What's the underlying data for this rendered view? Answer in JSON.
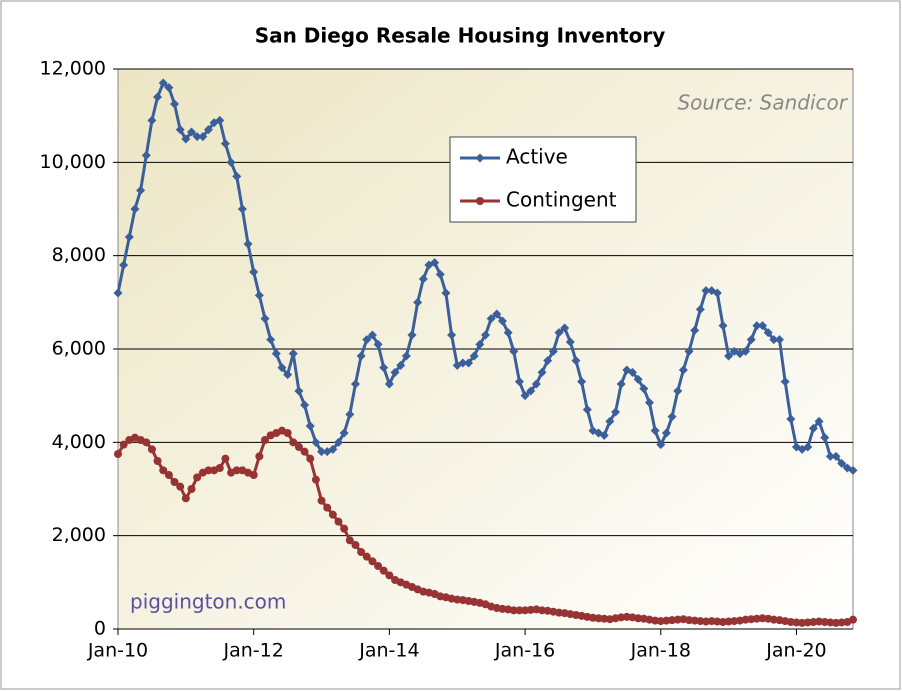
{
  "chart_data": {
    "type": "line",
    "title": "San Diego Resale Housing Inventory",
    "annotations": {
      "source": "Source: Sandicor",
      "watermark": "piggington.com"
    },
    "categories": [
      "Jan-10",
      null,
      null,
      null,
      null,
      null,
      null,
      null,
      null,
      null,
      null,
      null,
      null,
      null,
      null,
      null,
      null,
      null,
      null,
      null,
      null,
      null,
      null,
      null,
      "Jan-12",
      null,
      null,
      null,
      null,
      null,
      null,
      null,
      null,
      null,
      null,
      null,
      null,
      null,
      null,
      null,
      null,
      null,
      null,
      null,
      null,
      null,
      null,
      null,
      "Jan-14",
      null,
      null,
      null,
      null,
      null,
      null,
      null,
      null,
      null,
      null,
      null,
      null,
      null,
      null,
      null,
      null,
      null,
      null,
      null,
      null,
      null,
      null,
      null,
      "Jan-16",
      null,
      null,
      null,
      null,
      null,
      null,
      null,
      null,
      null,
      null,
      null,
      null,
      null,
      null,
      null,
      null,
      null,
      null,
      null,
      null,
      null,
      null,
      null,
      "Jan-18",
      null,
      null,
      null,
      null,
      null,
      null,
      null,
      null,
      null,
      null,
      null,
      null,
      null,
      null,
      null,
      null,
      null,
      null,
      null,
      null,
      null,
      null,
      null,
      "Jan-20",
      null,
      null,
      null,
      null,
      null,
      null,
      null,
      null,
      null,
      null
    ],
    "series": [
      {
        "name": "Active",
        "color": "#3b5f9b",
        "marker": "diamond",
        "values": [
          7200,
          7800,
          8400,
          9000,
          9400,
          10150,
          10900,
          11400,
          11700,
          11600,
          11250,
          10700,
          10500,
          10650,
          10550,
          10550,
          10700,
          10850,
          10900,
          10400,
          10000,
          9700,
          9000,
          8250,
          7650,
          7150,
          6650,
          6200,
          5900,
          5600,
          5450,
          5900,
          5100,
          4800,
          4350,
          4000,
          3800,
          3800,
          3850,
          4000,
          4200,
          4600,
          5250,
          5850,
          6200,
          6300,
          6100,
          5600,
          5250,
          5500,
          5650,
          5850,
          6300,
          7000,
          7500,
          7800,
          7850,
          7600,
          7200,
          6300,
          5650,
          5700,
          5700,
          5850,
          6100,
          6300,
          6650,
          6750,
          6600,
          6350,
          5950,
          5300,
          5000,
          5100,
          5250,
          5500,
          5750,
          5950,
          6350,
          6450,
          6150,
          5750,
          5300,
          4700,
          4250,
          4200,
          4150,
          4450,
          4650,
          5250,
          5550,
          5500,
          5350,
          5150,
          4850,
          4250,
          3950,
          4200,
          4550,
          5100,
          5550,
          5950,
          6400,
          6850,
          7250,
          7250,
          7200,
          6500,
          5850,
          5950,
          5900,
          5950,
          6200,
          6500,
          6500,
          6350,
          6200,
          6200,
          5300,
          4500,
          3900,
          3850,
          3900,
          4300,
          4450,
          4100,
          3700,
          3700,
          3550,
          3450,
          3400
        ]
      },
      {
        "name": "Contingent",
        "color": "#973333",
        "marker": "circle",
        "values": [
          3750,
          3950,
          4050,
          4100,
          4050,
          4000,
          3850,
          3600,
          3400,
          3300,
          3150,
          3050,
          2800,
          3000,
          3250,
          3350,
          3400,
          3400,
          3450,
          3650,
          3350,
          3400,
          3400,
          3350,
          3300,
          3700,
          4050,
          4150,
          4200,
          4250,
          4200,
          4000,
          3900,
          3800,
          3650,
          3200,
          2750,
          2600,
          2450,
          2300,
          2150,
          1900,
          1800,
          1650,
          1550,
          1450,
          1350,
          1250,
          1150,
          1050,
          1000,
          950,
          900,
          850,
          800,
          780,
          750,
          700,
          680,
          650,
          630,
          620,
          600,
          580,
          560,
          530,
          480,
          450,
          430,
          420,
          400,
          400,
          400,
          410,
          420,
          400,
          390,
          370,
          350,
          340,
          320,
          300,
          280,
          260,
          240,
          230,
          220,
          210,
          230,
          250,
          260,
          250,
          230,
          220,
          200,
          180,
          170,
          180,
          190,
          200,
          210,
          190,
          180,
          170,
          160,
          170,
          160,
          150,
          160,
          170,
          180,
          200,
          210,
          220,
          230,
          220,
          200,
          190,
          170,
          150,
          140,
          130,
          140,
          150,
          160,
          150,
          140,
          130,
          140,
          150,
          200
        ]
      }
    ],
    "ylim": [
      0,
      12000
    ],
    "yticks": [
      0,
      {
        "value": 2000,
        "label": "2,000"
      },
      {
        "value": 4000,
        "label": "4,000"
      },
      {
        "value": 6000,
        "label": "6,000"
      },
      {
        "value": 8000,
        "label": "8,000"
      },
      {
        "value": 10000,
        "label": "10,000"
      },
      {
        "value": 12000,
        "label": "12,000"
      }
    ],
    "grid": true
  }
}
